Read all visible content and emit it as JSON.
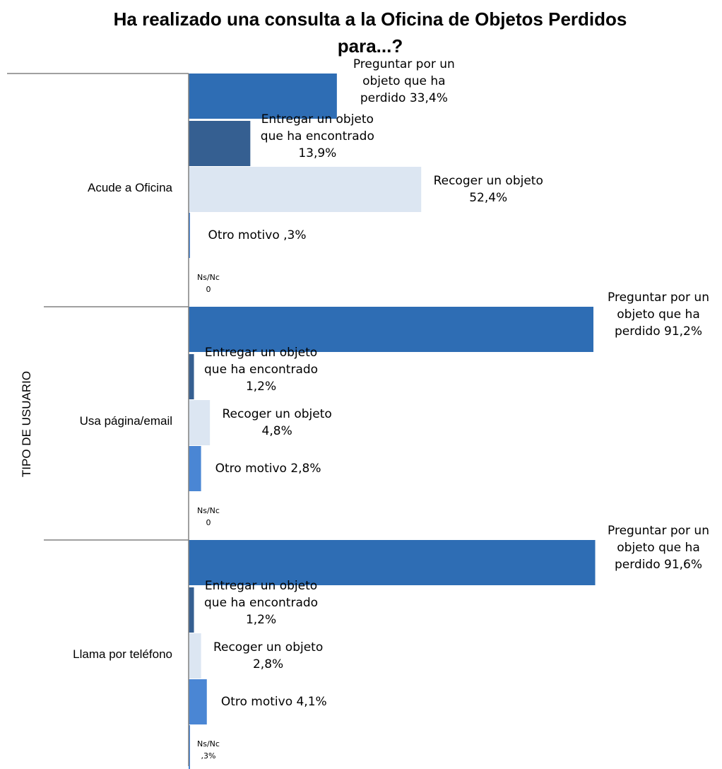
{
  "chart_data": {
    "type": "bar",
    "orientation": "horizontal",
    "title": "Ha realizado una consulta a la Oficina de Objetos Perdidos para...?",
    "ylabel": "TIPO DE USUARIO",
    "xlabel": "",
    "xlim": [
      0,
      100
    ],
    "grid": false,
    "legend": "none",
    "categories": [
      "Acude a Oficina",
      "Usa página/email",
      "Llama por teléfono"
    ],
    "series": [
      {
        "name": "Preguntar por un objeto que ha perdido",
        "color": "#2E6DB4",
        "values": [
          33.4,
          91.2,
          91.6
        ],
        "data_labels": [
          "Preguntar por un objeto que ha perdido 33,4%",
          "Preguntar por un objeto que ha perdido 91,2%",
          "Preguntar por un objeto que ha perdido 91,6%"
        ]
      },
      {
        "name": "Entregar un objeto que ha encontrado",
        "color": "#355F91",
        "values": [
          13.9,
          1.2,
          1.2
        ],
        "data_labels": [
          "Entregar un objeto que ha encontrado 13,9%",
          "Entregar un objeto que ha encontrado 1,2%",
          "Entregar un objeto que ha encontrado 1,2%"
        ]
      },
      {
        "name": "Recoger un objeto",
        "color": "#DCE6F2",
        "values": [
          52.4,
          4.8,
          2.8
        ],
        "data_labels": [
          "Recoger un objeto 52,4%",
          "Recoger un objeto 4,8%",
          "Recoger un objeto 2,8%"
        ]
      },
      {
        "name": "Otro motivo",
        "color": "#4A86D4",
        "values": [
          0.3,
          2.8,
          4.1
        ],
        "data_labels": [
          "Otro motivo ,3%",
          "Otro motivo 2,8%",
          "Otro motivo 4,1%"
        ]
      },
      {
        "name": "Ns/Nc",
        "color": "#4A86D4",
        "values": [
          0,
          0,
          0.3
        ],
        "data_labels": [
          "Ns/Nc 0",
          "Ns/Nc 0",
          "Ns/Nc ,3%"
        ]
      }
    ]
  }
}
